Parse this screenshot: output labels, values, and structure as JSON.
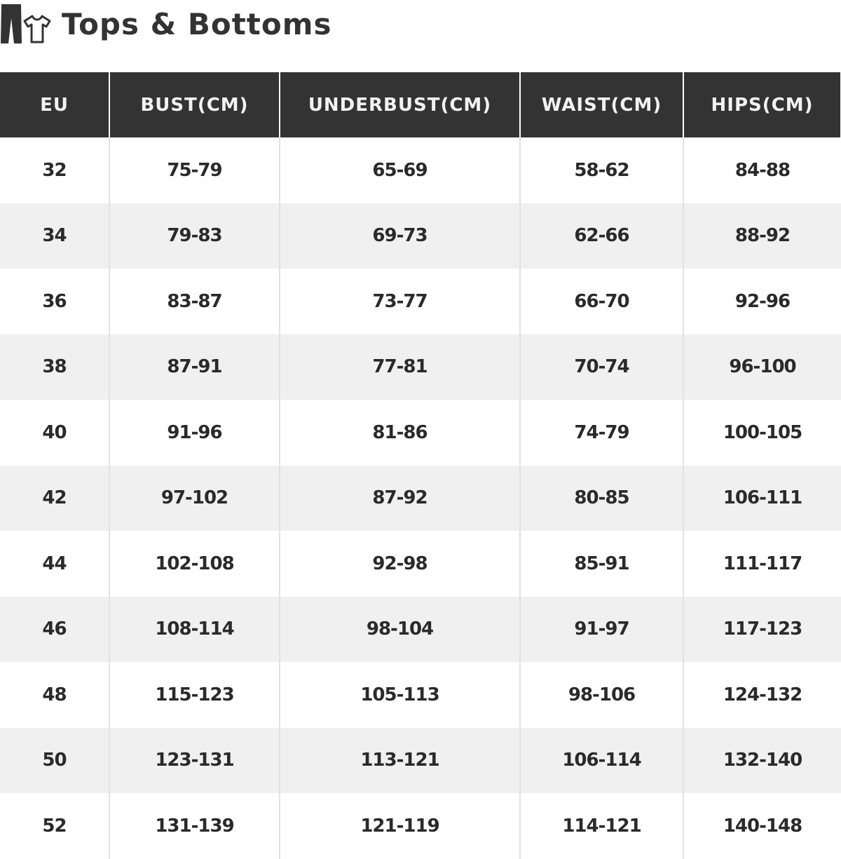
{
  "title": "Tops & Bottoms",
  "icons": [
    "pants-icon",
    "tshirt-icon"
  ],
  "table": {
    "headers": [
      "EU",
      "BUST(CM)",
      "UNDERBUST(CM)",
      "WAIST(CM)",
      "HIPS(CM)"
    ],
    "rows": [
      [
        "32",
        "75-79",
        "65-69",
        "58-62",
        "84-88"
      ],
      [
        "34",
        "79-83",
        "69-73",
        "62-66",
        "88-92"
      ],
      [
        "36",
        "83-87",
        "73-77",
        "66-70",
        "92-96"
      ],
      [
        "38",
        "87-91",
        "77-81",
        "70-74",
        "96-100"
      ],
      [
        "40",
        "91-96",
        "81-86",
        "74-79",
        "100-105"
      ],
      [
        "42",
        "97-102",
        "87-92",
        "80-85",
        "106-111"
      ],
      [
        "44",
        "102-108",
        "92-98",
        "85-91",
        "111-117"
      ],
      [
        "46",
        "108-114",
        "98-104",
        "91-97",
        "117-123"
      ],
      [
        "48",
        "115-123",
        "105-113",
        "98-106",
        "124-132"
      ],
      [
        "50",
        "123-131",
        "113-121",
        "106-114",
        "132-140"
      ],
      [
        "52",
        "131-139",
        "121-119",
        "114-121",
        "140-148"
      ]
    ]
  },
  "colors": {
    "header_bg": "#333333",
    "alt_row_bg": "#f0f0f0",
    "text": "#2a2a2a"
  }
}
